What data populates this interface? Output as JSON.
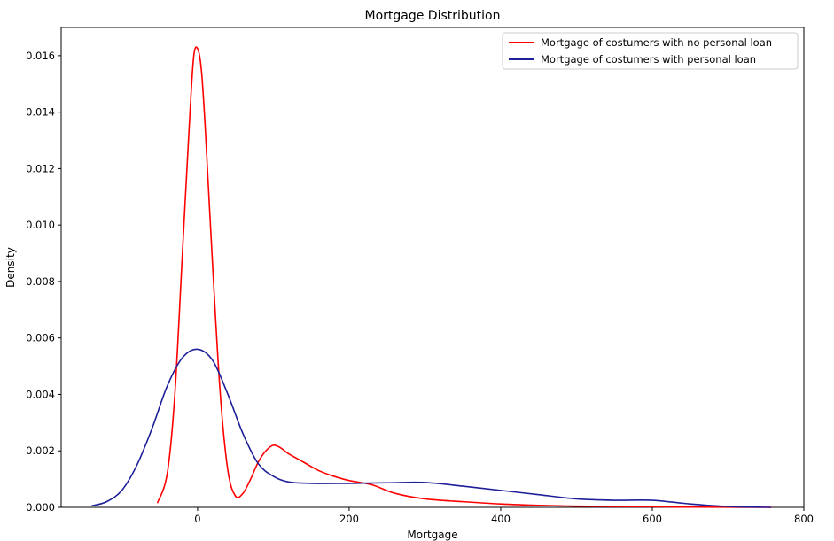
{
  "chart_data": {
    "type": "line",
    "title": "Mortgage Distribution",
    "xlabel": "Mortgage",
    "ylabel": "Density",
    "xlim": [
      -180,
      800
    ],
    "ylim": [
      0,
      0.017
    ],
    "x_ticks": [
      0,
      200,
      400,
      600,
      800
    ],
    "x_tick_labels": [
      "0",
      "200",
      "400",
      "600",
      "800"
    ],
    "y_ticks": [
      0,
      0.002,
      0.004,
      0.006,
      0.008,
      0.01,
      0.012,
      0.014,
      0.016
    ],
    "y_tick_labels": [
      "0.000",
      "0.002",
      "0.004",
      "0.006",
      "0.008",
      "0.010",
      "0.012",
      "0.014",
      "0.016"
    ],
    "grid": false,
    "legend_position": "top-right",
    "series": [
      {
        "name": "Mortgage of costumers with no personal loan",
        "color": "#ff0000",
        "x": [
          -53,
          -40,
          -30,
          -20,
          -10,
          -5,
          0,
          5,
          10,
          20,
          30,
          40,
          50,
          60,
          70,
          80,
          90,
          100,
          110,
          120,
          140,
          160,
          180,
          200,
          230,
          260,
          300,
          350,
          400,
          450,
          500,
          550,
          600,
          650,
          700,
          750,
          757
        ],
        "y": [
          0.00015,
          0.0012,
          0.004,
          0.009,
          0.014,
          0.016,
          0.01625,
          0.0155,
          0.0135,
          0.0085,
          0.004,
          0.0013,
          0.0004,
          0.0005,
          0.001,
          0.0016,
          0.002,
          0.0022,
          0.0021,
          0.0019,
          0.0016,
          0.0013,
          0.0011,
          0.00095,
          0.0008,
          0.0005,
          0.0003,
          0.0002,
          0.00012,
          7e-05,
          4e-05,
          3e-05,
          2e-05,
          1e-05,
          5e-06,
          0.0,
          0.0
        ]
      },
      {
        "name": "Mortgage of costumers with personal loan",
        "color": "#1f1f99",
        "x": [
          -140,
          -120,
          -100,
          -80,
          -60,
          -40,
          -20,
          0,
          20,
          40,
          60,
          80,
          100,
          120,
          150,
          200,
          250,
          300,
          350,
          400,
          450,
          500,
          550,
          600,
          650,
          700,
          757
        ],
        "y": [
          5e-05,
          0.0002,
          0.0006,
          0.0015,
          0.0028,
          0.0043,
          0.0053,
          0.0056,
          0.0052,
          0.004,
          0.0026,
          0.00155,
          0.0011,
          0.0009,
          0.00085,
          0.00085,
          0.00087,
          0.00088,
          0.00075,
          0.0006,
          0.00045,
          0.0003,
          0.00025,
          0.00025,
          0.00012,
          3e-05,
          0.0
        ]
      }
    ]
  }
}
